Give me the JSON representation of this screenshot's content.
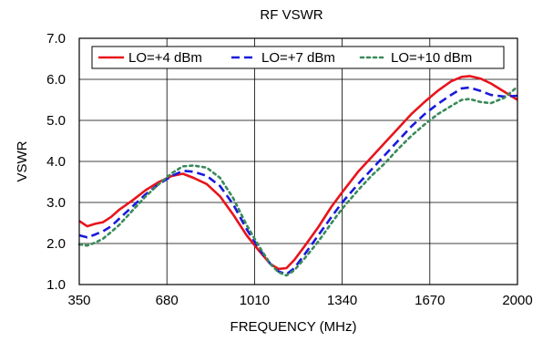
{
  "chart_data": {
    "type": "line",
    "title": "RF VSWR",
    "xlabel": "FREQUENCY (MHz)",
    "ylabel": "VSWR",
    "xlim": [
      350,
      2000
    ],
    "ylim": [
      1.0,
      7.0
    ],
    "x_ticks": [
      350,
      680,
      1010,
      1340,
      1670,
      2000
    ],
    "y_ticks": [
      1.0,
      2.0,
      3.0,
      4.0,
      5.0,
      6.0,
      7.0
    ],
    "x_tick_labels": [
      "350",
      "680",
      "1010",
      "1340",
      "1670",
      "2000"
    ],
    "y_tick_labels": [
      "1.0",
      "2.0",
      "3.0",
      "4.0",
      "5.0",
      "6.0",
      "7.0"
    ],
    "grid": true,
    "legend_placement": "top",
    "series": [
      {
        "name": "LO=+4 dBm",
        "color": "#e8141c",
        "style": "solid",
        "points": [
          [
            350,
            2.55
          ],
          [
            380,
            2.42
          ],
          [
            410,
            2.48
          ],
          [
            440,
            2.52
          ],
          [
            470,
            2.65
          ],
          [
            500,
            2.82
          ],
          [
            550,
            3.05
          ],
          [
            600,
            3.3
          ],
          [
            650,
            3.5
          ],
          [
            700,
            3.65
          ],
          [
            740,
            3.7
          ],
          [
            780,
            3.6
          ],
          [
            830,
            3.45
          ],
          [
            880,
            3.15
          ],
          [
            930,
            2.7
          ],
          [
            980,
            2.2
          ],
          [
            1030,
            1.8
          ],
          [
            1070,
            1.5
          ],
          [
            1100,
            1.38
          ],
          [
            1130,
            1.4
          ],
          [
            1160,
            1.6
          ],
          [
            1200,
            1.95
          ],
          [
            1250,
            2.4
          ],
          [
            1300,
            2.9
          ],
          [
            1340,
            3.25
          ],
          [
            1400,
            3.75
          ],
          [
            1450,
            4.1
          ],
          [
            1500,
            4.45
          ],
          [
            1550,
            4.8
          ],
          [
            1600,
            5.15
          ],
          [
            1650,
            5.45
          ],
          [
            1700,
            5.72
          ],
          [
            1750,
            5.95
          ],
          [
            1790,
            6.06
          ],
          [
            1820,
            6.08
          ],
          [
            1860,
            6.02
          ],
          [
            1900,
            5.9
          ],
          [
            1950,
            5.7
          ],
          [
            2000,
            5.5
          ]
        ]
      },
      {
        "name": "LO=+7 dBm",
        "color": "#1a1adc",
        "style": "dashed",
        "points": [
          [
            350,
            2.2
          ],
          [
            380,
            2.15
          ],
          [
            410,
            2.22
          ],
          [
            440,
            2.3
          ],
          [
            470,
            2.42
          ],
          [
            500,
            2.6
          ],
          [
            550,
            2.9
          ],
          [
            600,
            3.2
          ],
          [
            650,
            3.45
          ],
          [
            700,
            3.65
          ],
          [
            740,
            3.77
          ],
          [
            780,
            3.75
          ],
          [
            830,
            3.65
          ],
          [
            880,
            3.4
          ],
          [
            930,
            2.95
          ],
          [
            980,
            2.35
          ],
          [
            1030,
            1.85
          ],
          [
            1070,
            1.5
          ],
          [
            1100,
            1.32
          ],
          [
            1130,
            1.25
          ],
          [
            1160,
            1.4
          ],
          [
            1200,
            1.75
          ],
          [
            1250,
            2.2
          ],
          [
            1300,
            2.65
          ],
          [
            1340,
            3.0
          ],
          [
            1400,
            3.45
          ],
          [
            1450,
            3.8
          ],
          [
            1500,
            4.15
          ],
          [
            1550,
            4.5
          ],
          [
            1600,
            4.85
          ],
          [
            1650,
            5.15
          ],
          [
            1700,
            5.4
          ],
          [
            1750,
            5.62
          ],
          [
            1790,
            5.78
          ],
          [
            1820,
            5.8
          ],
          [
            1860,
            5.72
          ],
          [
            1900,
            5.62
          ],
          [
            1950,
            5.58
          ],
          [
            2000,
            5.6
          ]
        ]
      },
      {
        "name": "LO=+10 dBm",
        "color": "#3a8a5a",
        "style": "dotted",
        "points": [
          [
            350,
            1.98
          ],
          [
            380,
            1.95
          ],
          [
            410,
            2.02
          ],
          [
            440,
            2.12
          ],
          [
            470,
            2.28
          ],
          [
            500,
            2.45
          ],
          [
            550,
            2.8
          ],
          [
            600,
            3.15
          ],
          [
            650,
            3.45
          ],
          [
            700,
            3.72
          ],
          [
            740,
            3.88
          ],
          [
            780,
            3.9
          ],
          [
            830,
            3.85
          ],
          [
            880,
            3.6
          ],
          [
            930,
            3.1
          ],
          [
            980,
            2.45
          ],
          [
            1030,
            1.9
          ],
          [
            1070,
            1.5
          ],
          [
            1100,
            1.3
          ],
          [
            1130,
            1.22
          ],
          [
            1160,
            1.35
          ],
          [
            1200,
            1.65
          ],
          [
            1250,
            2.05
          ],
          [
            1300,
            2.5
          ],
          [
            1340,
            2.85
          ],
          [
            1400,
            3.3
          ],
          [
            1450,
            3.65
          ],
          [
            1500,
            3.95
          ],
          [
            1550,
            4.3
          ],
          [
            1600,
            4.62
          ],
          [
            1650,
            4.9
          ],
          [
            1700,
            5.15
          ],
          [
            1750,
            5.35
          ],
          [
            1790,
            5.5
          ],
          [
            1820,
            5.52
          ],
          [
            1860,
            5.45
          ],
          [
            1900,
            5.42
          ],
          [
            1950,
            5.55
          ],
          [
            2000,
            5.82
          ]
        ]
      }
    ]
  }
}
